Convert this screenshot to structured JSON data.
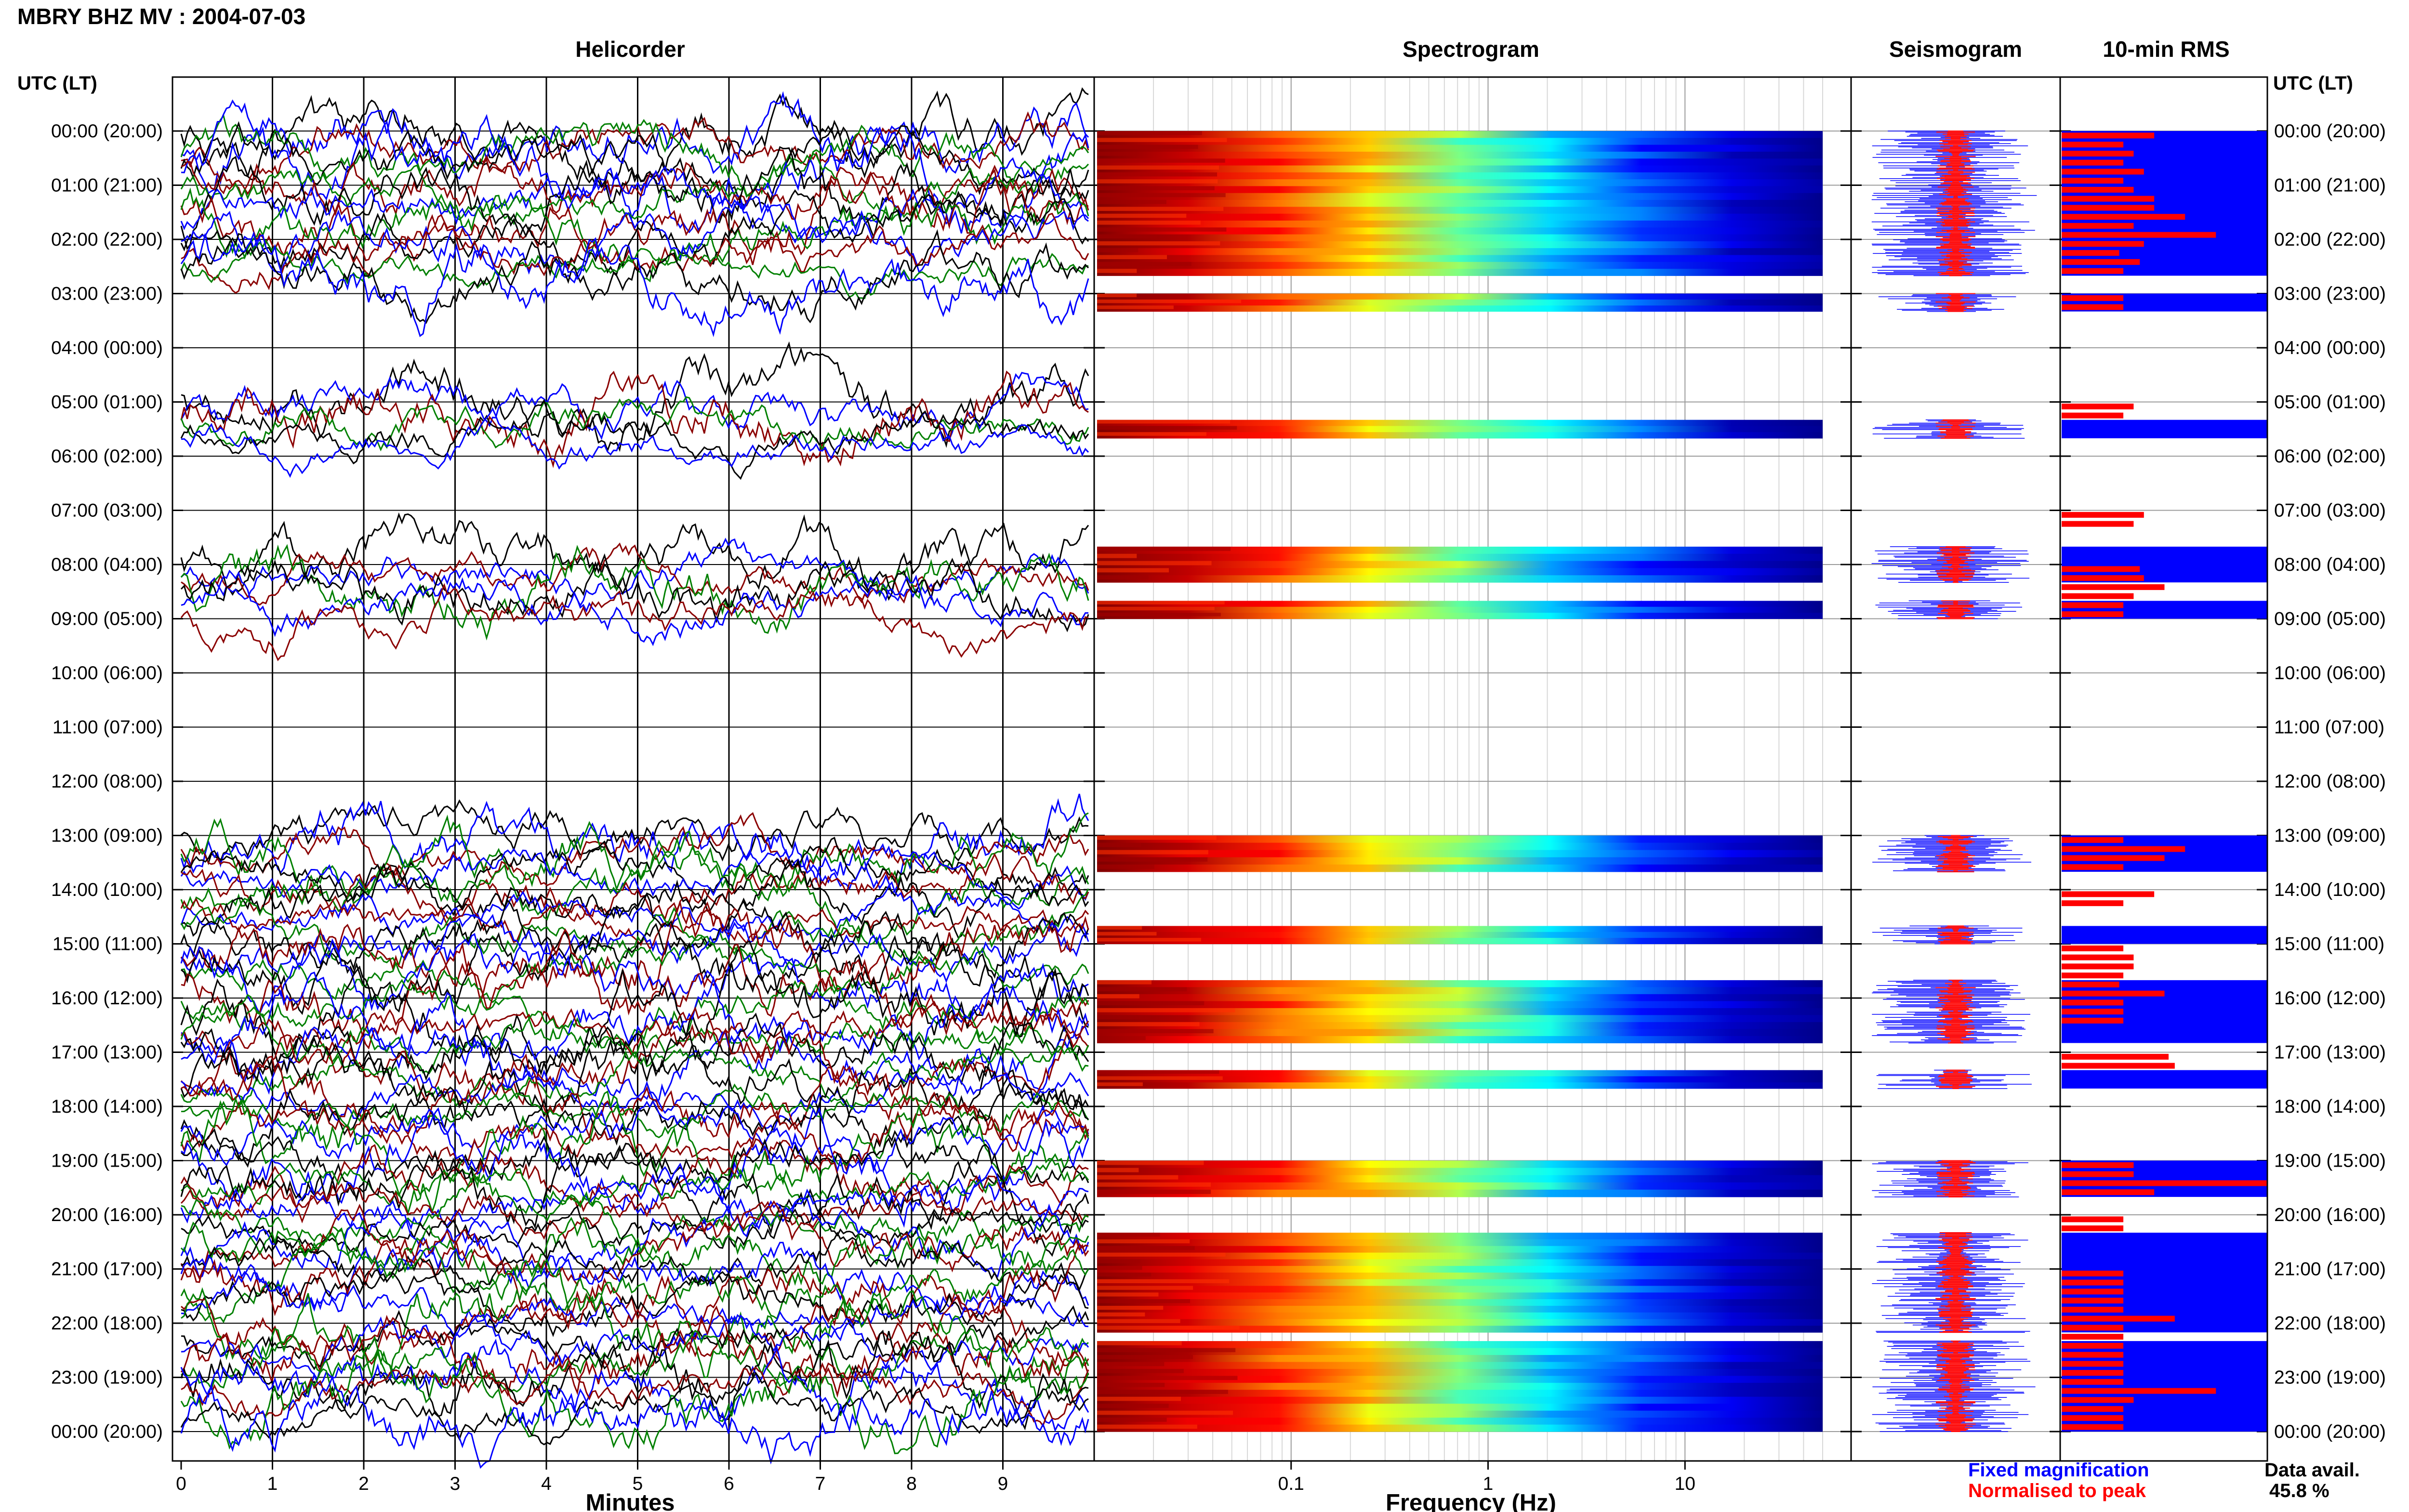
{
  "header": {
    "title": "MBRY BHZ MV : 2004-07-03"
  },
  "panels": {
    "helicorder": "Helicorder",
    "spectrogram": "Spectrogram",
    "seismogram": "Seismogram",
    "rms": "10-min RMS"
  },
  "time_axis_label": "UTC (LT)",
  "hour_labels": [
    "00:00 (20:00)",
    "01:00 (21:00)",
    "02:00 (22:00)",
    "03:00 (23:00)",
    "04:00 (00:00)",
    "05:00 (01:00)",
    "06:00 (02:00)",
    "07:00 (03:00)",
    "08:00 (04:00)",
    "09:00 (05:00)",
    "10:00 (06:00)",
    "11:00 (07:00)",
    "12:00 (08:00)",
    "13:00 (09:00)",
    "14:00 (10:00)",
    "15:00 (11:00)",
    "16:00 (12:00)",
    "17:00 (13:00)",
    "18:00 (14:00)",
    "19:00 (15:00)",
    "20:00 (16:00)",
    "21:00 (17:00)",
    "22:00 (18:00)",
    "23:00 (19:00)",
    "00:00 (20:00)"
  ],
  "legend": {
    "fixed": "Fixed magnification",
    "normalised": "Normalised to peak",
    "fixed_color": "#0000ff",
    "normalised_color": "#ff0000"
  },
  "data_avail": {
    "label": "Data avail.",
    "value": "45.8 %"
  },
  "chart_data": [
    {
      "type": "line",
      "title": "Helicorder",
      "xlabel": "Minutes",
      "ylabel": "UTC (LT)",
      "x_ticks": [
        "0",
        "1",
        "2",
        "3",
        "4",
        "5",
        "6",
        "7",
        "8",
        "9"
      ],
      "xlim": [
        0,
        10
      ],
      "ylim_hours": [
        0,
        24
      ],
      "trace_colors": [
        "#000000",
        "#0000ff",
        "#8b0000",
        "#008000"
      ],
      "data_intervals_hours": [
        [
          0,
          3
        ],
        [
          5,
          6
        ],
        [
          8,
          9.17
        ],
        [
          13,
          24
        ]
      ]
    },
    {
      "type": "heatmap",
      "title": "Spectrogram",
      "xlabel": "Frequency (Hz)",
      "x_scale": "log",
      "x_ticks": [
        "0.1",
        "1",
        "10"
      ],
      "xlim_hz": [
        0.01,
        50
      ],
      "colormap": [
        "#800000",
        "#ff0000",
        "#ffff00",
        "#00ffff",
        "#0000ff",
        "#00008b"
      ],
      "blocks_hours": [
        [
          0,
          2.67
        ],
        [
          3,
          3.33
        ],
        [
          5.33,
          5.67
        ],
        [
          7.67,
          8.33
        ],
        [
          8.67,
          9
        ],
        [
          13,
          13.67
        ],
        [
          14.67,
          15
        ],
        [
          15.67,
          16.83
        ],
        [
          17.33,
          17.67
        ],
        [
          19,
          19.67
        ],
        [
          20.33,
          22.17
        ],
        [
          22.33,
          24
        ]
      ]
    },
    {
      "type": "line",
      "title": "Seismogram",
      "series": [
        {
          "name": "Fixed magnification",
          "color": "#0000ff"
        },
        {
          "name": "Normalised to peak",
          "color": "#ff0000"
        }
      ],
      "blocks_hours": [
        [
          0,
          2.67
        ],
        [
          3,
          3.33
        ],
        [
          5.33,
          5.67
        ],
        [
          7.67,
          8.33
        ],
        [
          8.67,
          9
        ],
        [
          13,
          13.67
        ],
        [
          14.67,
          15
        ],
        [
          15.67,
          16.83
        ],
        [
          17.33,
          17.67
        ],
        [
          19,
          19.67
        ],
        [
          20.33,
          22.17
        ],
        [
          22.33,
          24
        ]
      ]
    },
    {
      "type": "bar",
      "title": "10-min RMS",
      "bar_color": "#ff0000",
      "background_color": "#0000ff",
      "blocks_hours": [
        [
          0,
          2.67
        ],
        [
          3,
          3.33
        ],
        [
          5.33,
          5.67
        ],
        [
          7.67,
          8.33
        ],
        [
          8.67,
          9
        ],
        [
          13,
          13.67
        ],
        [
          14.67,
          15
        ],
        [
          15.67,
          16.83
        ],
        [
          17.33,
          17.67
        ],
        [
          19,
          19.67
        ],
        [
          20.33,
          22.17
        ],
        [
          22.33,
          24
        ]
      ],
      "rms_fraction_per_10min": {
        "0": [
          0.45,
          0.3,
          0.35,
          0.3,
          0.4,
          0.3
        ],
        "1": [
          0.35,
          0.45,
          0.45,
          0.6,
          0.35,
          0.75
        ],
        "2": [
          0.4,
          0.28,
          0.38,
          0.3
        ],
        "3": [
          0.3,
          0.3
        ],
        "5": [
          0.35,
          0.3
        ],
        "7": [
          0.4,
          0.35
        ],
        "8": [
          0.38,
          0.4,
          0.5,
          0.35,
          0.3,
          0.3
        ],
        "13": [
          0.3,
          0.6,
          0.5,
          0.3
        ],
        "14": [
          0.45,
          0.3
        ],
        "15": [
          0.3,
          0.35,
          0.35,
          0.3,
          0.28,
          0.5
        ],
        "16": [
          0.3,
          0.3,
          0.3
        ],
        "17": [
          0.52,
          0.55
        ],
        "19": [
          0.35,
          0.35,
          1.0,
          0.45
        ],
        "20": [
          0.3,
          0.3
        ],
        "21": [
          0.3,
          0.3,
          0.3,
          0.3,
          0.3,
          0.55
        ],
        "22": [
          0.3,
          0.3,
          0.3,
          0.3,
          0.3,
          0.3
        ],
        "23": [
          0.3,
          0.75,
          0.35,
          0.3,
          0.3,
          0.3
        ]
      }
    }
  ]
}
